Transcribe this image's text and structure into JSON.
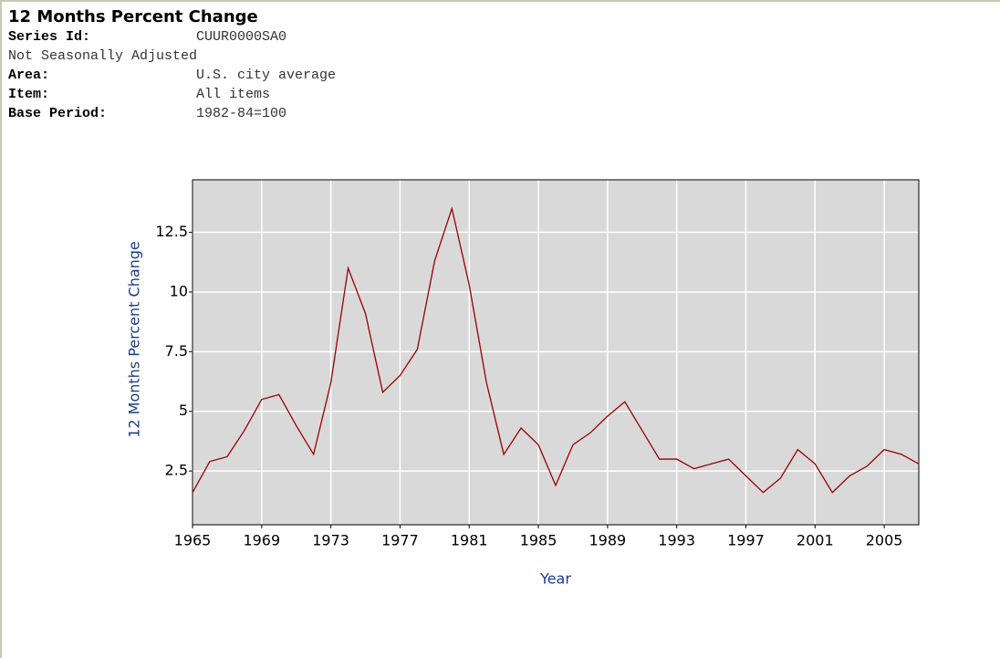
{
  "header": {
    "title": "12 Months Percent Change",
    "rows": [
      {
        "label": "Series Id:",
        "value": "CUUR0000SA0"
      },
      {
        "value": "Not Seasonally Adjusted"
      },
      {
        "label": "Area:",
        "value": "U.S. city average"
      },
      {
        "label": "Item:",
        "value": "All items"
      },
      {
        "label": "Base Period:",
        "value": "1982-84=100"
      }
    ]
  },
  "chart_data": {
    "type": "line",
    "xlabel": "Year",
    "ylabel": "12 Months Percent Change",
    "x": [
      1965,
      1966,
      1967,
      1968,
      1969,
      1970,
      1971,
      1972,
      1973,
      1974,
      1975,
      1976,
      1977,
      1978,
      1979,
      1980,
      1981,
      1982,
      1983,
      1984,
      1985,
      1986,
      1987,
      1988,
      1989,
      1990,
      1991,
      1992,
      1993,
      1994,
      1995,
      1996,
      1997,
      1998,
      1999,
      2000,
      2001,
      2002,
      2003,
      2004,
      2005,
      2006,
      2007
    ],
    "values": [
      1.6,
      2.9,
      3.1,
      4.2,
      5.5,
      5.7,
      4.4,
      3.2,
      6.2,
      11.0,
      9.1,
      5.8,
      6.5,
      7.6,
      11.3,
      13.5,
      10.3,
      6.2,
      3.2,
      4.3,
      3.6,
      1.9,
      3.6,
      4.1,
      4.8,
      5.4,
      4.2,
      3.0,
      3.0,
      2.6,
      2.8,
      3.0,
      2.3,
      1.6,
      2.2,
      3.4,
      2.8,
      1.6,
      2.3,
      2.7,
      3.4,
      3.2,
      2.8
    ],
    "color": "#990000",
    "xlim": [
      1965,
      2007
    ],
    "xticks": [
      1965,
      1969,
      1973,
      1977,
      1981,
      1985,
      1989,
      1993,
      1997,
      2001,
      2005
    ],
    "ylim": [
      0.25,
      14.7
    ],
    "yticks": [
      2.5,
      5,
      7.5,
      10,
      12.5
    ],
    "grid": true
  }
}
